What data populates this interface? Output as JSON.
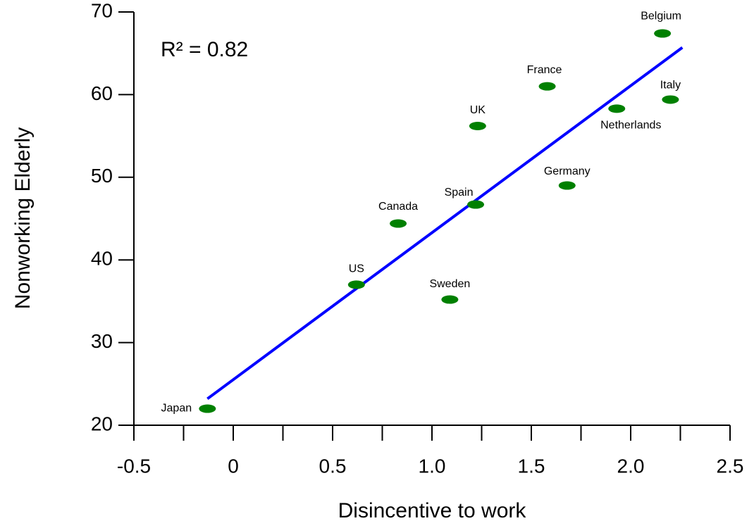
{
  "chart_data": {
    "type": "scatter",
    "annotation": "R² = 0.82",
    "x_label": "Disincentive to work",
    "y_label": "Nonworking Elderly",
    "labels": [
      "Japan",
      "US",
      "Canada",
      "Sweden",
      "Spain",
      "UK",
      "France",
      "Germany",
      "Netherlands",
      "Belgium",
      "Italy"
    ],
    "x": [
      -0.13,
      0.62,
      0.83,
      1.09,
      1.22,
      1.23,
      1.58,
      1.68,
      1.93,
      2.16,
      2.2
    ],
    "values": [
      22.0,
      37.0,
      44.4,
      35.2,
      46.7,
      56.2,
      61.0,
      49.0,
      58.3,
      67.4,
      59.4
    ],
    "color": "#008000",
    "trendline": {
      "x": [
        -0.13,
        2.26
      ],
      "y": [
        23.2,
        65.7
      ],
      "color": "#0000ff"
    },
    "xlim": [
      -0.5,
      2.5
    ],
    "xticks": [
      -0.5,
      0,
      0.5,
      {
        "value": 1,
        "label": "1.0"
      },
      1.5,
      {
        "value": 2,
        "label": "2.0"
      },
      2.5
    ],
    "xminorticks": [
      -0.25,
      0.25,
      0.75,
      1.25,
      1.75,
      2.25
    ],
    "ylim": [
      20,
      70
    ],
    "yticks": [
      20,
      30,
      40,
      50,
      60,
      70
    ],
    "grid": false
  }
}
